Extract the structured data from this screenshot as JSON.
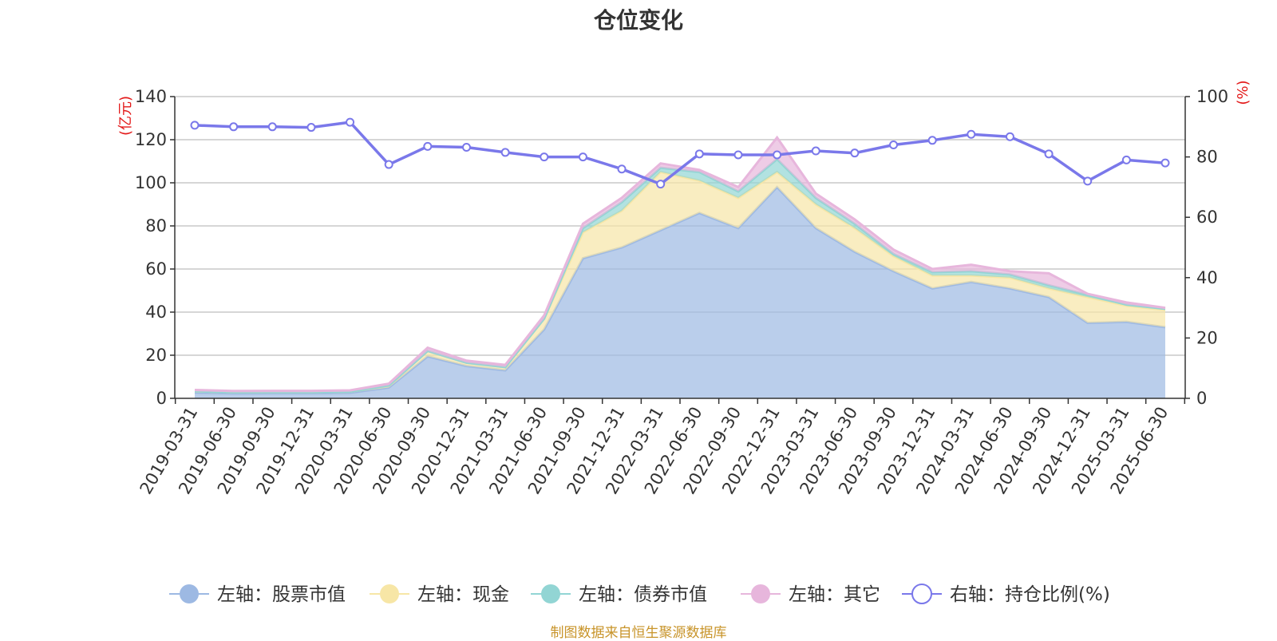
{
  "chart_data": {
    "type": "area",
    "title": "仓位变化",
    "left_axis_unit": "(亿元)",
    "right_axis_unit": "(%)",
    "left_ylim": [
      0,
      140
    ],
    "left_yticks": [
      0,
      20,
      40,
      60,
      80,
      100,
      120,
      140
    ],
    "right_ylim": [
      0,
      100
    ],
    "right_yticks": [
      0,
      20,
      40,
      60,
      80,
      100
    ],
    "grid": true,
    "legend_position": "bottom",
    "x": [
      "2019-03-31",
      "2019-06-30",
      "2019-09-30",
      "2019-12-31",
      "2020-03-31",
      "2020-06-30",
      "2020-09-30",
      "2020-12-31",
      "2021-03-31",
      "2021-06-30",
      "2021-09-30",
      "2021-12-31",
      "2022-03-31",
      "2022-06-30",
      "2022-09-30",
      "2022-12-31",
      "2023-03-31",
      "2023-06-30",
      "2023-09-30",
      "2023-12-31",
      "2024-03-31",
      "2024-06-30",
      "2024-09-30",
      "2024-12-31",
      "2025-03-31",
      "2025-06-30"
    ],
    "series": [
      {
        "name": "左轴：股票市值",
        "axis": "left",
        "kind": "stacked-area",
        "color": "#9db9e3",
        "values": [
          2.7,
          2.3,
          2.4,
          2.4,
          2.6,
          5,
          19.5,
          15,
          13,
          32,
          65,
          70,
          78,
          86,
          79,
          98,
          79,
          68,
          59,
          51,
          54,
          51,
          47,
          35,
          35.5,
          33
        ]
      },
      {
        "name": "左轴：现金",
        "axis": "left",
        "kind": "stacked-area",
        "color": "#f7e6a6",
        "values": [
          0.6,
          0.5,
          0.5,
          0.5,
          0.5,
          1,
          2.5,
          1.5,
          1.5,
          5,
          12,
          17,
          27,
          15,
          14,
          7,
          11,
          11,
          7,
          6,
          3,
          5,
          4,
          12,
          7.5,
          8
        ]
      },
      {
        "name": "左轴：债券市值",
        "axis": "left",
        "kind": "stacked-area",
        "color": "#92d5d4",
        "values": [
          0,
          0,
          0,
          0,
          0,
          0,
          0,
          0,
          0,
          0,
          2,
          4,
          2,
          4,
          3,
          6,
          3,
          2,
          1,
          1.5,
          2,
          1.5,
          1.5,
          1,
          0.5,
          0.5
        ]
      },
      {
        "name": "左轴：其它",
        "axis": "left",
        "kind": "stacked-area",
        "color": "#e7b6dc",
        "values": [
          0.6,
          0.6,
          0.6,
          0.6,
          0.6,
          0.8,
          1.5,
          1,
          1,
          1.5,
          2,
          2,
          2,
          1,
          2,
          10,
          2,
          2,
          2,
          1.5,
          3,
          1.5,
          5.5,
          0.5,
          1,
          0.5
        ]
      },
      {
        "name": "右轴：持仓比例(%)",
        "axis": "right",
        "kind": "line",
        "color": "#7a78ea",
        "values": [
          90.5,
          90,
          90,
          89.8,
          91.5,
          77.5,
          83.5,
          83.2,
          81.5,
          80,
          80,
          76,
          71,
          81,
          80.7,
          80.7,
          82,
          81.3,
          84,
          85.5,
          87.5,
          86.7,
          81,
          72,
          79,
          78
        ]
      }
    ]
  },
  "source_note": "制图数据来自恒生聚源数据库"
}
